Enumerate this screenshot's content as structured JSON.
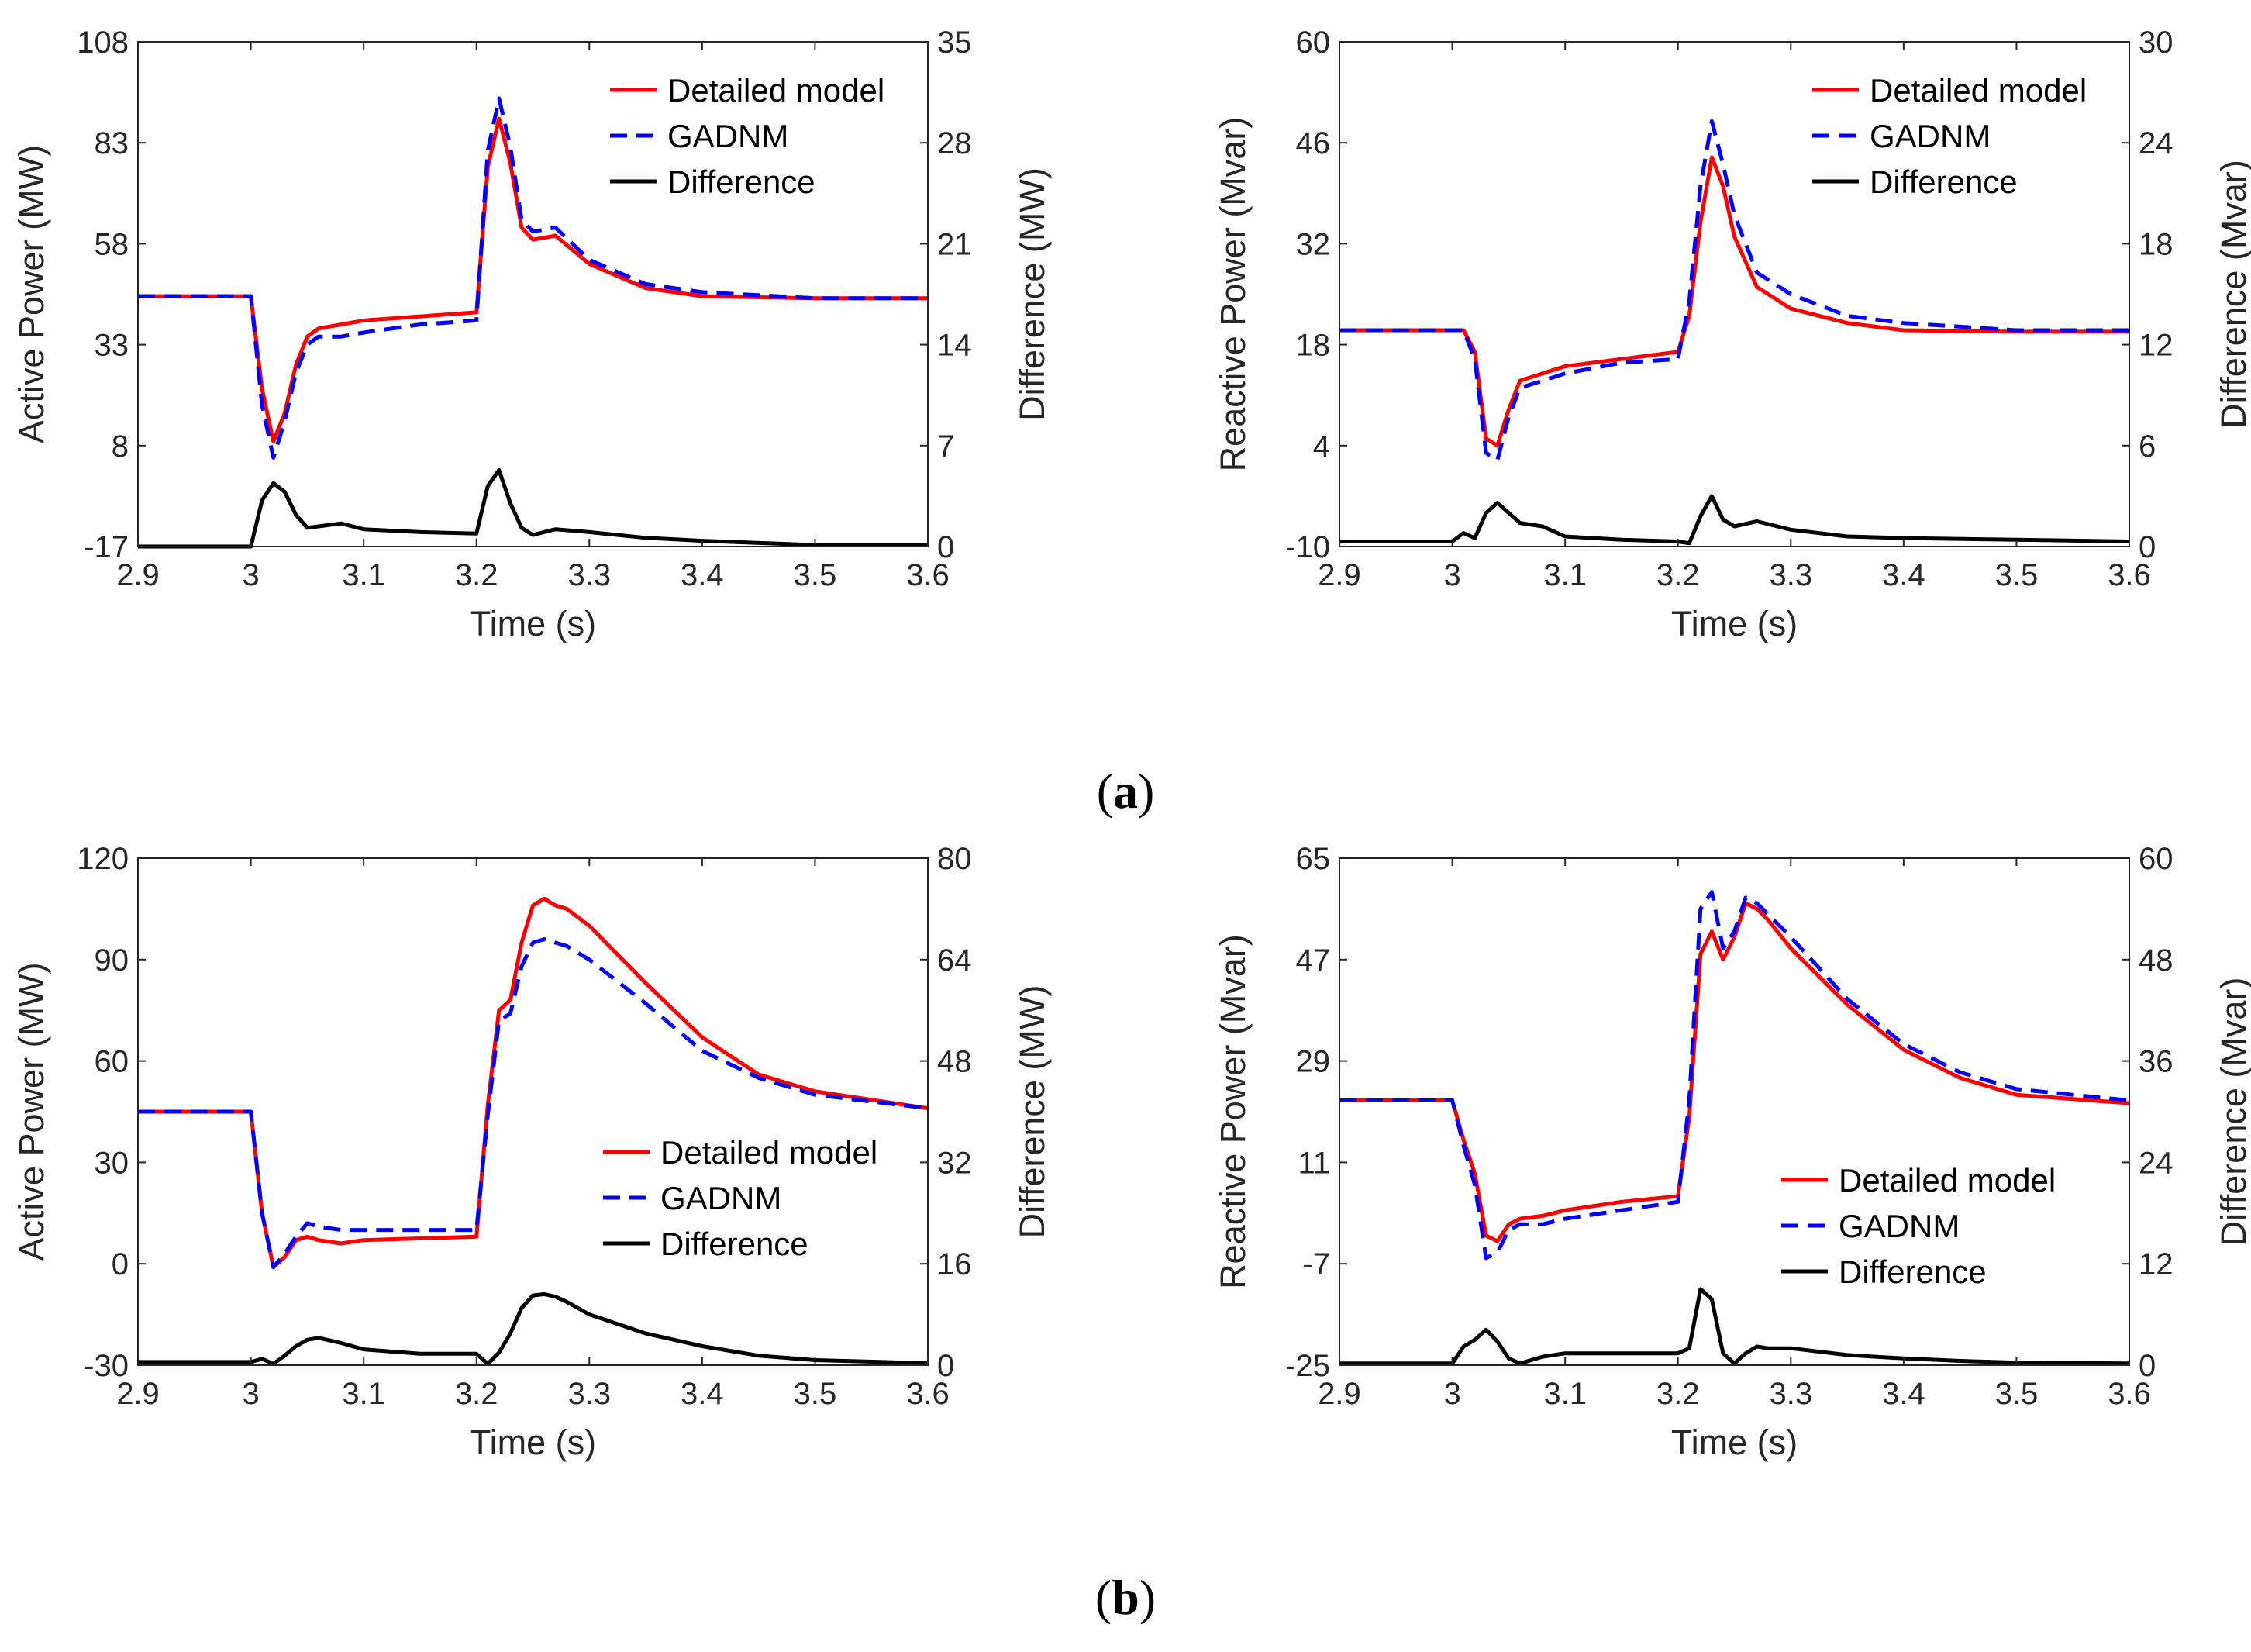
{
  "chart_data": [
    {
      "type": "line",
      "panel": "a-left",
      "xlabel": "Time (s)",
      "ylabel": "Active Power (MW)",
      "y2label": "Difference (MW)",
      "xlim": [
        2.9,
        3.6
      ],
      "ylim": [
        -17,
        108
      ],
      "y2lim": [
        0,
        35
      ],
      "xticks": [
        "2.9",
        "3",
        "3.1",
        "3.2",
        "3.3",
        "3.4",
        "3.5",
        "3.6"
      ],
      "yticks": [
        "-17",
        "8",
        "33",
        "58",
        "83",
        "108"
      ],
      "y2ticks": [
        "0",
        "7",
        "14",
        "21",
        "28",
        "35"
      ],
      "legend": [
        "Detailed model",
        "GADNM",
        "Difference"
      ],
      "legend_position": "top-right",
      "series": [
        {
          "name": "Detailed model",
          "axis": "left",
          "color": "#ff0000",
          "dash": false,
          "x": [
            2.9,
            3.0,
            3.01,
            3.02,
            3.03,
            3.04,
            3.05,
            3.06,
            3.08,
            3.1,
            3.15,
            3.2,
            3.21,
            3.22,
            3.23,
            3.24,
            3.25,
            3.27,
            3.3,
            3.35,
            3.4,
            3.5,
            3.6
          ],
          "values": [
            45,
            45,
            22,
            9,
            16,
            28,
            35,
            37,
            38,
            39,
            40,
            41,
            77,
            89,
            78,
            62,
            59,
            60,
            53,
            47,
            45,
            44.5,
            44.5
          ]
        },
        {
          "name": "GADNM",
          "axis": "left",
          "color": "#0000ff",
          "dash": true,
          "x": [
            2.9,
            3.0,
            3.01,
            3.02,
            3.03,
            3.04,
            3.05,
            3.06,
            3.08,
            3.1,
            3.15,
            3.2,
            3.21,
            3.22,
            3.23,
            3.24,
            3.25,
            3.27,
            3.3,
            3.35,
            3.4,
            3.5,
            3.6
          ],
          "values": [
            45,
            45,
            18,
            5,
            14,
            26,
            33,
            35,
            35,
            36,
            38,
            39,
            81,
            94,
            82,
            64,
            61,
            62,
            54,
            48,
            46,
            44.5,
            44.5
          ]
        },
        {
          "name": "Difference",
          "axis": "right",
          "color": "#000000",
          "dash": false,
          "x": [
            2.9,
            3.0,
            3.01,
            3.02,
            3.03,
            3.04,
            3.05,
            3.06,
            3.08,
            3.1,
            3.15,
            3.2,
            3.21,
            3.22,
            3.23,
            3.24,
            3.25,
            3.27,
            3.3,
            3.35,
            3.4,
            3.5,
            3.6
          ],
          "values": [
            0,
            0,
            3.2,
            4.4,
            3.8,
            2.2,
            1.3,
            1.4,
            1.6,
            1.2,
            1.0,
            0.9,
            4.2,
            5.3,
            3.0,
            1.3,
            0.8,
            1.2,
            1.0,
            0.6,
            0.4,
            0.1,
            0.1
          ]
        }
      ]
    },
    {
      "type": "line",
      "panel": "a-right",
      "xlabel": "Time (s)",
      "ylabel": "Reactive Power (Mvar)",
      "y2label": "Difference (Mvar)",
      "xlim": [
        2.9,
        3.6
      ],
      "ylim": [
        -10,
        60
      ],
      "y2lim": [
        0,
        30
      ],
      "xticks": [
        "2.9",
        "3",
        "3.1",
        "3.2",
        "3.3",
        "3.4",
        "3.5",
        "3.6"
      ],
      "yticks": [
        "-10",
        "4",
        "18",
        "32",
        "46",
        "60"
      ],
      "y2ticks": [
        "0",
        "6",
        "12",
        "18",
        "24",
        "30"
      ],
      "legend": [
        "Detailed model",
        "GADNM",
        "Difference"
      ],
      "legend_position": "top-right",
      "series": [
        {
          "name": "Detailed model",
          "axis": "left",
          "color": "#ff0000",
          "dash": false,
          "x": [
            2.9,
            3.0,
            3.01,
            3.02,
            3.03,
            3.04,
            3.05,
            3.06,
            3.08,
            3.1,
            3.15,
            3.2,
            3.21,
            3.22,
            3.23,
            3.24,
            3.25,
            3.27,
            3.3,
            3.35,
            3.4,
            3.5,
            3.6
          ],
          "values": [
            20,
            20,
            20,
            17,
            5,
            4,
            9,
            13,
            14,
            15,
            16,
            17,
            22,
            35,
            44,
            40,
            33,
            26,
            23,
            21,
            20,
            19.8,
            19.8
          ]
        },
        {
          "name": "GADNM",
          "axis": "left",
          "color": "#0000ff",
          "dash": true,
          "x": [
            2.9,
            3.0,
            3.01,
            3.02,
            3.03,
            3.04,
            3.05,
            3.06,
            3.08,
            3.1,
            3.15,
            3.2,
            3.21,
            3.22,
            3.23,
            3.24,
            3.25,
            3.27,
            3.3,
            3.35,
            3.4,
            3.5,
            3.6
          ],
          "values": [
            20,
            20,
            20,
            16,
            3,
            2,
            8,
            12,
            13,
            14,
            15.5,
            16,
            24,
            40,
            49,
            43,
            36,
            28,
            25,
            22,
            21,
            20,
            20
          ]
        },
        {
          "name": "Difference",
          "axis": "right",
          "color": "#000000",
          "dash": false,
          "x": [
            2.9,
            3.0,
            3.01,
            3.02,
            3.03,
            3.04,
            3.05,
            3.06,
            3.08,
            3.1,
            3.15,
            3.2,
            3.21,
            3.22,
            3.23,
            3.24,
            3.25,
            3.27,
            3.3,
            3.35,
            3.4,
            3.5,
            3.6
          ],
          "values": [
            0.3,
            0.3,
            0.8,
            0.5,
            2.0,
            2.6,
            2.0,
            1.4,
            1.2,
            0.6,
            0.4,
            0.3,
            0.2,
            1.8,
            3.0,
            1.6,
            1.2,
            1.5,
            1.0,
            0.6,
            0.5,
            0.4,
            0.3
          ]
        }
      ]
    },
    {
      "type": "line",
      "panel": "b-left",
      "xlabel": "Time (s)",
      "ylabel": "Active Power (MW)",
      "y2label": "Difference (MW)",
      "xlim": [
        2.9,
        3.6
      ],
      "ylim": [
        -30,
        120
      ],
      "y2lim": [
        0,
        80
      ],
      "xticks": [
        "2.9",
        "3",
        "3.1",
        "3.2",
        "3.3",
        "3.4",
        "3.5",
        "3.6"
      ],
      "yticks": [
        "-30",
        "0",
        "30",
        "60",
        "90",
        "120"
      ],
      "y2ticks": [
        "0",
        "16",
        "32",
        "48",
        "64",
        "80"
      ],
      "legend": [
        "Detailed model",
        "GADNM",
        "Difference"
      ],
      "legend_position": "center-right",
      "series": [
        {
          "name": "Detailed model",
          "axis": "left",
          "color": "#ff0000",
          "dash": false,
          "x": [
            2.9,
            3.0,
            3.01,
            3.02,
            3.03,
            3.04,
            3.05,
            3.06,
            3.08,
            3.1,
            3.15,
            3.2,
            3.21,
            3.22,
            3.23,
            3.24,
            3.25,
            3.26,
            3.27,
            3.28,
            3.3,
            3.35,
            3.4,
            3.45,
            3.5,
            3.6
          ],
          "values": [
            45,
            45,
            15,
            -1,
            2,
            7,
            8,
            7,
            6,
            7,
            7.5,
            8,
            47,
            75,
            78,
            95,
            106,
            108,
            106,
            105,
            100,
            83,
            67,
            56,
            51,
            46
          ]
        },
        {
          "name": "GADNM",
          "axis": "left",
          "color": "#0000ff",
          "dash": true,
          "x": [
            2.9,
            3.0,
            3.01,
            3.02,
            3.03,
            3.04,
            3.05,
            3.06,
            3.08,
            3.1,
            3.15,
            3.2,
            3.21,
            3.22,
            3.23,
            3.24,
            3.25,
            3.26,
            3.27,
            3.28,
            3.3,
            3.35,
            3.4,
            3.45,
            3.5,
            3.6
          ],
          "values": [
            45,
            45,
            15,
            -1,
            3,
            8,
            12,
            11,
            10,
            10,
            10,
            10,
            44,
            72,
            74,
            88,
            95,
            96,
            95,
            94,
            90,
            77,
            63,
            55,
            50,
            46
          ]
        },
        {
          "name": "Difference",
          "axis": "right",
          "color": "#000000",
          "dash": false,
          "x": [
            2.9,
            3.0,
            3.01,
            3.02,
            3.03,
            3.04,
            3.05,
            3.06,
            3.08,
            3.1,
            3.15,
            3.2,
            3.21,
            3.22,
            3.23,
            3.24,
            3.25,
            3.26,
            3.27,
            3.28,
            3.3,
            3.35,
            3.4,
            3.45,
            3.5,
            3.6
          ],
          "values": [
            0.5,
            0.5,
            1,
            0.2,
            1.5,
            3,
            4,
            4.3,
            3.5,
            2.5,
            1.8,
            1.8,
            0.2,
            2,
            5,
            9,
            11,
            11.2,
            10.8,
            10,
            8,
            5,
            3,
            1.5,
            0.8,
            0.3
          ]
        }
      ]
    },
    {
      "type": "line",
      "panel": "b-right",
      "xlabel": "Time (s)",
      "ylabel": "Reactive Power (Mvar)",
      "y2label": "Difference (Mvar)",
      "xlim": [
        2.9,
        3.6
      ],
      "ylim": [
        -25,
        65
      ],
      "y2lim": [
        0,
        60
      ],
      "xticks": [
        "2.9",
        "3",
        "3.1",
        "3.2",
        "3.3",
        "3.4",
        "3.5",
        "3.6"
      ],
      "yticks": [
        "-25",
        "-7",
        "11",
        "29",
        "47",
        "65"
      ],
      "y2ticks": [
        "0",
        "12",
        "24",
        "36",
        "48",
        "60"
      ],
      "legend": [
        "Detailed model",
        "GADNM",
        "Difference"
      ],
      "legend_position": "center-right",
      "series": [
        {
          "name": "Detailed model",
          "axis": "left",
          "color": "#ff0000",
          "dash": false,
          "x": [
            2.9,
            3.0,
            3.01,
            3.02,
            3.03,
            3.04,
            3.05,
            3.06,
            3.08,
            3.1,
            3.15,
            3.2,
            3.21,
            3.22,
            3.23,
            3.24,
            3.25,
            3.26,
            3.27,
            3.28,
            3.3,
            3.35,
            3.4,
            3.45,
            3.5,
            3.6
          ],
          "values": [
            22,
            22,
            15,
            9,
            -2,
            -3,
            0,
            1,
            1.5,
            2.5,
            4,
            5,
            19,
            48,
            52,
            47,
            51,
            57,
            56,
            54,
            49,
            39,
            31,
            26,
            23,
            21.5
          ]
        },
        {
          "name": "GADNM",
          "axis": "left",
          "color": "#0000ff",
          "dash": true,
          "x": [
            2.9,
            3.0,
            3.01,
            3.02,
            3.03,
            3.04,
            3.05,
            3.06,
            3.08,
            3.1,
            3.15,
            3.2,
            3.21,
            3.22,
            3.23,
            3.24,
            3.25,
            3.26,
            3.27,
            3.28,
            3.3,
            3.35,
            3.4,
            3.45,
            3.5,
            3.6
          ],
          "values": [
            22,
            22,
            14,
            7,
            -6,
            -5,
            -1,
            0,
            0,
            1,
            2.5,
            4,
            22,
            56,
            59,
            49,
            52,
            58,
            57,
            55,
            51,
            40,
            32,
            27,
            24,
            22
          ]
        },
        {
          "name": "Difference",
          "axis": "right",
          "color": "#000000",
          "dash": false,
          "x": [
            2.9,
            3.0,
            3.01,
            3.02,
            3.03,
            3.04,
            3.05,
            3.06,
            3.08,
            3.1,
            3.15,
            3.2,
            3.21,
            3.22,
            3.23,
            3.24,
            3.25,
            3.26,
            3.27,
            3.28,
            3.3,
            3.35,
            3.4,
            3.45,
            3.5,
            3.6
          ],
          "values": [
            0.2,
            0.2,
            2.2,
            3,
            4.2,
            2.8,
            0.8,
            0.2,
            1,
            1.4,
            1.4,
            1.4,
            2,
            9,
            7.8,
            1.4,
            0.2,
            1.4,
            2.2,
            2,
            2,
            1.2,
            0.8,
            0.5,
            0.3,
            0.2
          ]
        }
      ]
    }
  ],
  "captions": {
    "a": {
      "open": "(",
      "letter": "a",
      "close": ")"
    },
    "b": {
      "open": "(",
      "letter": "b",
      "close": ")"
    }
  }
}
